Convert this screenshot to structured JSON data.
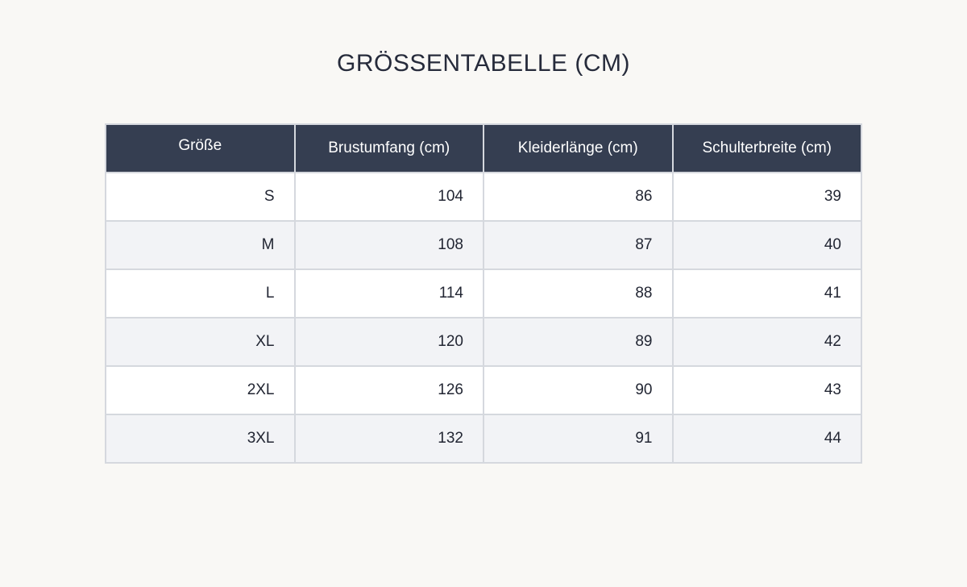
{
  "title": "GRÖSSENTABELLE (CM)",
  "table": {
    "headers": [
      "Größe",
      "Brustumfang (cm)",
      "Kleiderlänge (cm)",
      "Schulterbreite (cm)"
    ],
    "rows": [
      [
        "S",
        "104",
        "86",
        "39"
      ],
      [
        "M",
        "108",
        "87",
        "40"
      ],
      [
        "L",
        "114",
        "88",
        "41"
      ],
      [
        "XL",
        "120",
        "89",
        "42"
      ],
      [
        "2XL",
        "126",
        "90",
        "43"
      ],
      [
        "3XL",
        "132",
        "91",
        "44"
      ]
    ]
  },
  "colors": {
    "background": "#f9f8f5",
    "header_background": "#353e51",
    "header_text": "#ffffff",
    "row_alt": "#f2f3f6",
    "border": "#d5d8de"
  }
}
